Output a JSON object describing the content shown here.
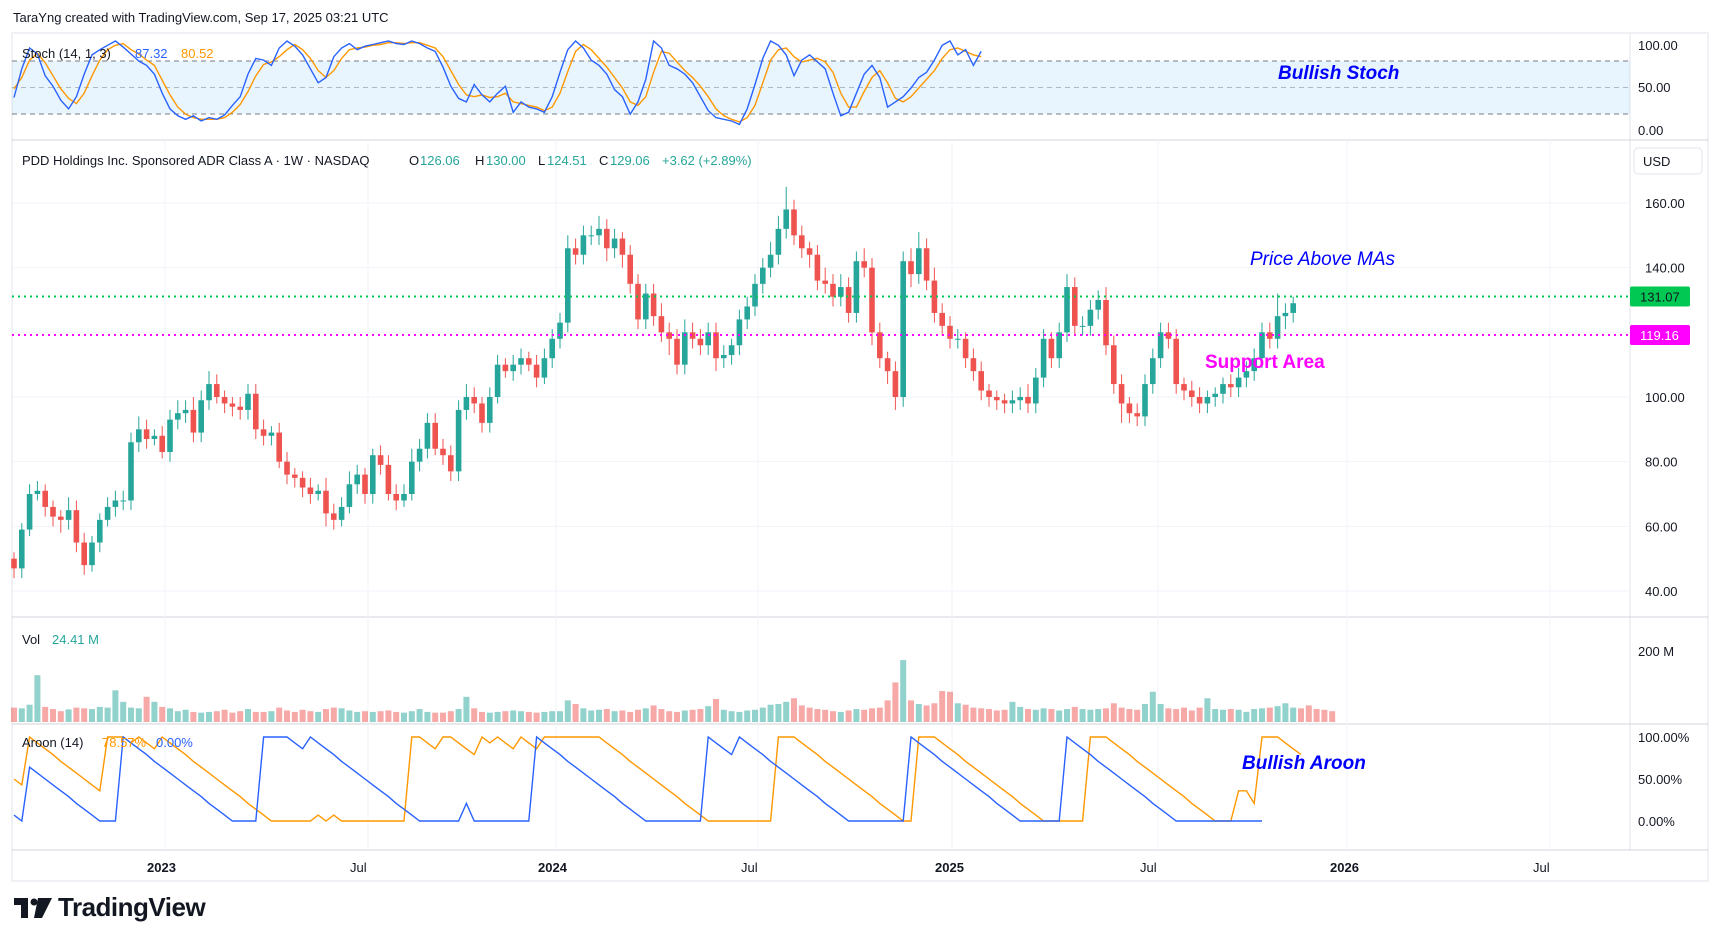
{
  "header": {
    "text": "TaraYng created with TradingView.com, Sep 17, 2025 03:21 UTC"
  },
  "logo": {
    "wordmark": "TradingView",
    "icon": "tradingview-logo-icon"
  },
  "symbol": {
    "name": "PDD Holdings Inc. Sponsored ADR Class A · 1W · NASDAQ",
    "open_label": "O",
    "open": "126.06",
    "high_label": "H",
    "high": "130.00",
    "low_label": "L",
    "low": "124.51",
    "close_label": "C",
    "close": "129.06",
    "change": "+3.62 (+2.89%)",
    "currency": "USD"
  },
  "colors": {
    "up": "#26a69a",
    "down": "#ef5350",
    "stoch_k": "#2962ff",
    "stoch_d": "#ff9800",
    "green_level": "#00c853",
    "magenta_level": "#ff00ff",
    "annotation_blue": "#0000ff"
  },
  "chart_data": [
    {
      "type": "line",
      "name": "stochastic",
      "label": "Stoch (14, 1, 3)",
      "k_value": "87.32",
      "d_value": "80.52",
      "ylim": [
        0,
        100
      ],
      "bands": [
        20,
        50,
        80
      ],
      "y_ticks": [
        "100.00",
        "50.00",
        "0.00"
      ],
      "annotation": "Bullish Stoch",
      "k_values": [
        35,
        68,
        92,
        85,
        60,
        48,
        32,
        22,
        36,
        62,
        84,
        90,
        95,
        100,
        93,
        85,
        77,
        72,
        62,
        40,
        22,
        14,
        10,
        14,
        8,
        12,
        10,
        15,
        26,
        36,
        62,
        80,
        78,
        72,
        92,
        100,
        94,
        84,
        68,
        52,
        58,
        82,
        92,
        97,
        90,
        94,
        96,
        98,
        100,
        97,
        96,
        100,
        97,
        92,
        88,
        70,
        48,
        34,
        30,
        50,
        38,
        30,
        40,
        48,
        18,
        30,
        24,
        22,
        18,
        36,
        64,
        90,
        100,
        92,
        78,
        72,
        62,
        44,
        36,
        16,
        30,
        56,
        100,
        92,
        72,
        68,
        62,
        52,
        36,
        20,
        12,
        10,
        8,
        4,
        22,
        50,
        80,
        100,
        95,
        84,
        60,
        78,
        84,
        76,
        68,
        40,
        14,
        18,
        40,
        62,
        72,
        58,
        24,
        30,
        36,
        46,
        58,
        64,
        78,
        95,
        100,
        84,
        90,
        72,
        88
      ],
      "d_values": [
        45,
        58,
        78,
        86,
        75,
        60,
        45,
        34,
        28,
        40,
        60,
        78,
        90,
        95,
        97,
        90,
        85,
        78,
        72,
        55,
        38,
        24,
        16,
        12,
        10,
        10,
        10,
        12,
        18,
        27,
        42,
        60,
        73,
        76,
        82,
        90,
        96,
        90,
        80,
        66,
        58,
        66,
        80,
        90,
        92,
        93,
        95,
        96,
        98,
        98,
        97,
        98,
        98,
        95,
        92,
        82,
        66,
        50,
        38,
        36,
        38,
        35,
        36,
        40,
        30,
        28,
        26,
        24,
        20,
        24,
        40,
        65,
        88,
        96,
        90,
        80,
        70,
        58,
        46,
        30,
        26,
        36,
        64,
        88,
        86,
        76,
        66,
        58,
        48,
        36,
        22,
        14,
        10,
        7,
        12,
        26,
        52,
        78,
        90,
        92,
        82,
        76,
        78,
        80,
        76,
        64,
        40,
        24,
        24,
        42,
        58,
        66,
        52,
        34,
        30,
        36,
        46,
        56,
        66,
        80,
        90,
        92,
        88,
        84,
        82
      ]
    },
    {
      "type": "candlestick",
      "name": "price",
      "x_tick_labels": [
        "2023",
        "Jul",
        "2024",
        "Jul",
        "2025",
        "Jul",
        "2026",
        "Jul"
      ],
      "y_ticks": [
        "160.00",
        "140.00",
        "100.00",
        "80.00",
        "60.00",
        "40.00"
      ],
      "ylim": [
        30,
        170
      ],
      "levels": [
        {
          "value": 131.07,
          "label": "131.07",
          "color": "#00c853"
        },
        {
          "value": 119.16,
          "label": "119.16",
          "color": "#ff00ff"
        }
      ],
      "annotations": [
        {
          "text": "Price Above MAs",
          "color": "#0000ff"
        },
        {
          "text": "Support Area",
          "color": "#ff00ff"
        }
      ],
      "closes": [
        47,
        59,
        70,
        71,
        66,
        63,
        62,
        65,
        55,
        48,
        55,
        62,
        66,
        68,
        68,
        86,
        90,
        87,
        88,
        83,
        93,
        95,
        96,
        89,
        99,
        104,
        100,
        98,
        97,
        96,
        101,
        90,
        88,
        89,
        80,
        76,
        75,
        72,
        70,
        71,
        64,
        62,
        66,
        73,
        76,
        70,
        82,
        79,
        70,
        68,
        70,
        80,
        84,
        92,
        84,
        82,
        77,
        96,
        100,
        98,
        92,
        100,
        110,
        108,
        110,
        112,
        110,
        106,
        112,
        118,
        123,
        146,
        144,
        150,
        150,
        152,
        146,
        149,
        144,
        135,
        124,
        132,
        125,
        120,
        118,
        110,
        120,
        118,
        116,
        120,
        112,
        113,
        116,
        124,
        128,
        135,
        140,
        144,
        152,
        158,
        150,
        146,
        144,
        136,
        135,
        131,
        134,
        126,
        142,
        140,
        120,
        112,
        108,
        100,
        142,
        138,
        146,
        136,
        126,
        122,
        118,
        118,
        112,
        108,
        102,
        100,
        99,
        98,
        99,
        100,
        98,
        106,
        118,
        112,
        120,
        134,
        122,
        122,
        127,
        130,
        116,
        104,
        98,
        95,
        94,
        104,
        112,
        120,
        118,
        104,
        102,
        100,
        98,
        100,
        101,
        104,
        103,
        106,
        108,
        112,
        120,
        118,
        125,
        126,
        129
      ],
      "highs_pad": [
        2,
        2,
        3,
        3,
        2,
        2,
        2,
        4,
        3,
        3,
        2,
        2,
        3,
        3,
        3,
        3,
        4,
        3,
        2,
        3,
        3,
        4,
        3,
        4,
        3,
        4,
        3,
        2,
        2,
        3,
        3,
        3,
        3,
        2,
        3,
        3,
        2,
        2,
        3,
        2,
        4,
        3,
        3,
        4,
        3,
        2,
        2,
        3,
        3,
        3,
        3,
        4,
        3,
        3,
        3,
        3,
        3,
        3,
        4,
        3,
        2,
        3,
        3,
        2,
        3,
        3,
        2,
        3,
        3,
        3,
        3,
        4,
        3,
        3,
        3,
        4,
        3,
        3,
        2,
        3,
        3,
        3,
        3,
        4,
        3,
        3,
        4,
        3,
        3,
        3,
        3,
        3,
        2,
        3,
        3,
        3,
        3,
        4,
        4,
        7,
        3,
        3,
        2,
        3,
        4,
        3,
        4,
        3,
        3,
        4,
        3,
        3,
        2,
        3,
        3,
        4,
        5,
        3,
        4,
        3,
        3,
        3,
        2,
        3,
        3,
        2,
        2,
        2,
        3,
        3,
        4,
        3,
        3,
        2,
        3,
        4,
        3,
        3,
        3,
        3,
        4,
        3,
        3,
        2,
        3,
        3,
        3,
        3,
        3,
        3,
        2,
        3,
        3,
        2,
        2,
        2,
        3,
        3,
        3,
        3,
        3,
        3,
        7,
        3,
        2
      ],
      "lows_pad": [
        3,
        3,
        2,
        2,
        3,
        3,
        4,
        3,
        3,
        3,
        2,
        3,
        2,
        3,
        3,
        3,
        3,
        3,
        2,
        2,
        3,
        3,
        3,
        3,
        3,
        3,
        2,
        3,
        3,
        3,
        3,
        3,
        3,
        3,
        2,
        3,
        3,
        3,
        3,
        2,
        4,
        3,
        2,
        2,
        3,
        3,
        3,
        3,
        2,
        3,
        2,
        2,
        3,
        3,
        2,
        3,
        3,
        3,
        3,
        3,
        3,
        3,
        2,
        2,
        3,
        3,
        2,
        3,
        2,
        3,
        3,
        3,
        3,
        3,
        3,
        3,
        4,
        3,
        4,
        3,
        3,
        3,
        3,
        3,
        5,
        3,
        3,
        3,
        3,
        3,
        4,
        3,
        3,
        3,
        3,
        3,
        3,
        3,
        3,
        3,
        3,
        3,
        4,
        3,
        3,
        3,
        3,
        3,
        3,
        3,
        4,
        3,
        4,
        4,
        3,
        4,
        3,
        3,
        3,
        3,
        3,
        3,
        3,
        3,
        3,
        3,
        3,
        3,
        3,
        3,
        3,
        3,
        3,
        3,
        3,
        3,
        3,
        3,
        3,
        3,
        3,
        3,
        6,
        3,
        3,
        3,
        3,
        3,
        3,
        3,
        3,
        3,
        3,
        3,
        3,
        3,
        3,
        3,
        3,
        3,
        3,
        3,
        3,
        4,
        3
      ]
    },
    {
      "type": "bar",
      "name": "volume",
      "label": "Vol",
      "value": "24.41 M",
      "y_ticks": [
        "200 M"
      ],
      "ylim": [
        0,
        230
      ],
      "values": [
        40,
        38,
        48,
        130,
        42,
        36,
        30,
        35,
        40,
        38,
        36,
        42,
        40,
        88,
        56,
        40,
        38,
        70,
        56,
        42,
        38,
        30,
        34,
        28,
        26,
        28,
        30,
        34,
        26,
        30,
        36,
        28,
        28,
        30,
        40,
        32,
        28,
        34,
        30,
        28,
        36,
        40,
        38,
        32,
        28,
        30,
        28,
        30,
        32,
        28,
        26,
        30,
        36,
        28,
        26,
        26,
        30,
        36,
        70,
        38,
        28,
        26,
        28,
        30,
        32,
        30,
        28,
        26,
        28,
        30,
        30,
        60,
        50,
        38,
        32,
        34,
        36,
        30,
        32,
        28,
        34,
        38,
        46,
        36,
        30,
        28,
        32,
        34,
        36,
        44,
        64,
        34,
        30,
        28,
        32,
        34,
        40,
        48,
        50,
        56,
        66,
        46,
        40,
        36,
        34,
        30,
        28,
        32,
        36,
        34,
        38,
        40,
        60,
        110,
        172,
        60,
        50,
        46,
        52,
        86,
        84,
        52,
        48,
        40,
        38,
        36,
        32,
        34,
        56,
        42,
        36,
        34,
        38,
        36,
        32,
        36,
        42,
        36,
        34,
        36,
        38,
        52,
        40,
        36,
        34,
        50,
        84,
        50,
        38,
        36,
        40,
        32,
        40,
        66,
        36,
        34,
        36,
        34,
        28,
        36,
        38,
        40,
        44,
        52,
        40,
        38,
        46,
        36,
        34,
        30
      ]
    },
    {
      "type": "line",
      "name": "aroon",
      "label": "Aroon (14)",
      "up_value": "78.57%",
      "down_value": "0.00%",
      "ylim": [
        0,
        100
      ],
      "y_ticks": [
        "100.00%",
        "50.00%",
        "0.00%"
      ],
      "annotation": "Bullish Aroon",
      "up_values": [
        50,
        43,
        100,
        93,
        86,
        79,
        71,
        64,
        57,
        50,
        43,
        36,
        100,
        100,
        100,
        93,
        100,
        93,
        86,
        100,
        93,
        86,
        79,
        71,
        64,
        57,
        50,
        43,
        36,
        29,
        21,
        14,
        7,
        0,
        0,
        0,
        0,
        0,
        0,
        7,
        0,
        7,
        0,
        0,
        0,
        0,
        0,
        0,
        0,
        0,
        0,
        100,
        100,
        93,
        86,
        100,
        100,
        93,
        86,
        79,
        100,
        93,
        100,
        93,
        86,
        100,
        93,
        86,
        100,
        100,
        100,
        100,
        100,
        100,
        100,
        100,
        93,
        86,
        79,
        71,
        64,
        57,
        50,
        43,
        36,
        29,
        21,
        14,
        7,
        0,
        0,
        0,
        0,
        0,
        0,
        0,
        0,
        0,
        100,
        100,
        100,
        93,
        86,
        79,
        71,
        64,
        57,
        50,
        43,
        36,
        29,
        21,
        14,
        7,
        0,
        0,
        100,
        100,
        100,
        93,
        86,
        79,
        71,
        64,
        57,
        50,
        43,
        36,
        29,
        21,
        14,
        7,
        0,
        0,
        0,
        0,
        0,
        0,
        100,
        100,
        100,
        93,
        86,
        79,
        71,
        64,
        57,
        50,
        43,
        36,
        29,
        21,
        14,
        7,
        0,
        0,
        0,
        36,
        36,
        21,
        100,
        100,
        100,
        93,
        86,
        79
      ],
      "down_values": [
        7,
        0,
        64,
        57,
        50,
        43,
        36,
        29,
        21,
        14,
        7,
        0,
        0,
        0,
        100,
        93,
        86,
        79,
        71,
        64,
        57,
        50,
        43,
        36,
        29,
        21,
        14,
        7,
        0,
        0,
        0,
        0,
        100,
        100,
        100,
        100,
        93,
        86,
        100,
        93,
        86,
        79,
        71,
        64,
        57,
        50,
        43,
        36,
        29,
        21,
        14,
        7,
        0,
        0,
        0,
        0,
        0,
        0,
        21,
        0,
        0,
        0,
        0,
        0,
        0,
        0,
        0,
        100,
        93,
        86,
        79,
        71,
        64,
        57,
        50,
        43,
        36,
        29,
        21,
        14,
        7,
        0,
        0,
        0,
        0,
        0,
        0,
        0,
        0,
        100,
        93,
        86,
        79,
        100,
        93,
        86,
        79,
        71,
        64,
        57,
        50,
        43,
        36,
        29,
        21,
        14,
        7,
        0,
        0,
        0,
        0,
        0,
        0,
        0,
        0,
        100,
        93,
        86,
        79,
        71,
        64,
        57,
        50,
        43,
        36,
        29,
        21,
        14,
        7,
        0,
        0,
        0,
        0,
        0,
        0,
        100,
        93,
        86,
        79,
        71,
        64,
        57,
        50,
        43,
        36,
        29,
        21,
        14,
        7,
        0,
        0,
        0,
        0,
        0,
        0,
        0,
        0,
        0,
        0,
        0,
        0
      ]
    }
  ]
}
